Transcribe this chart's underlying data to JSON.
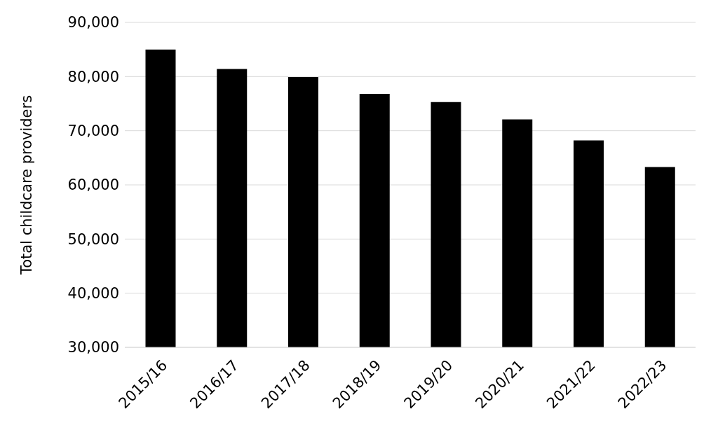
{
  "chart_data": {
    "type": "bar",
    "ylabel": "Total childcare providers",
    "categories": [
      "2015/16",
      "2016/17",
      "2017/18",
      "2018/19",
      "2019/20",
      "2020/21",
      "2021/22",
      "2022/23"
    ],
    "values": [
      85000,
      81400,
      79900,
      76800,
      75300,
      72100,
      68200,
      63300
    ],
    "color": "#000000",
    "ylim": [
      30000,
      90000
    ],
    "yticks": [
      {
        "value": 30000,
        "label": "30,000"
      },
      {
        "value": 40000,
        "label": "40,000"
      },
      {
        "value": 50000,
        "label": "50,000"
      },
      {
        "value": 60000,
        "label": "60,000"
      },
      {
        "value": 70000,
        "label": "70,000"
      },
      {
        "value": 80000,
        "label": "80,000"
      },
      {
        "value": 90000,
        "label": "90,000"
      }
    ],
    "grid": "y"
  }
}
